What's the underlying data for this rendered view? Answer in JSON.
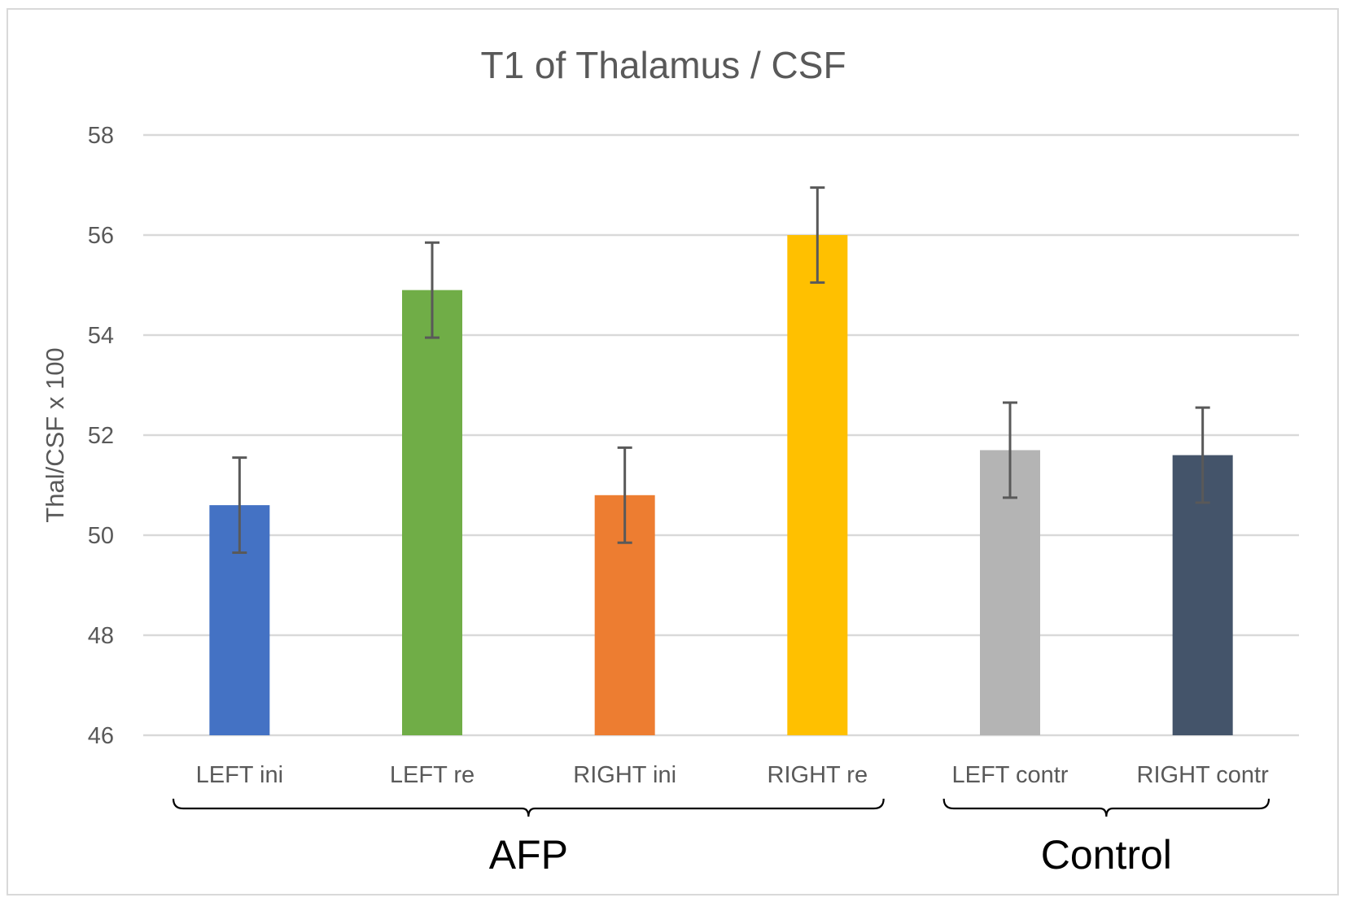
{
  "chart_data": {
    "type": "bar",
    "title": "T1 of Thalamus / CSF",
    "ylabel": "Thal/CSF x 100",
    "xlabel": "",
    "ylim": [
      46,
      58
    ],
    "yticks": [
      46,
      48,
      50,
      52,
      54,
      56,
      58
    ],
    "grid": true,
    "categories": [
      "LEFT ini",
      "LEFT re",
      "RIGHT ini",
      "RIGHT re",
      "LEFT contr",
      "RIGHT contr"
    ],
    "values": [
      50.6,
      54.9,
      50.8,
      56.0,
      51.7,
      51.6
    ],
    "errors": [
      0.95,
      0.95,
      0.95,
      0.95,
      0.95,
      0.95
    ],
    "colors": [
      "#4472c4",
      "#70ad47",
      "#ed7d31",
      "#ffc000",
      "#b4b4b4",
      "#44546a"
    ],
    "groups": [
      {
        "label": "AFP",
        "from": 0,
        "to": 3
      },
      {
        "label": "Control",
        "from": 4,
        "to": 5
      }
    ]
  }
}
